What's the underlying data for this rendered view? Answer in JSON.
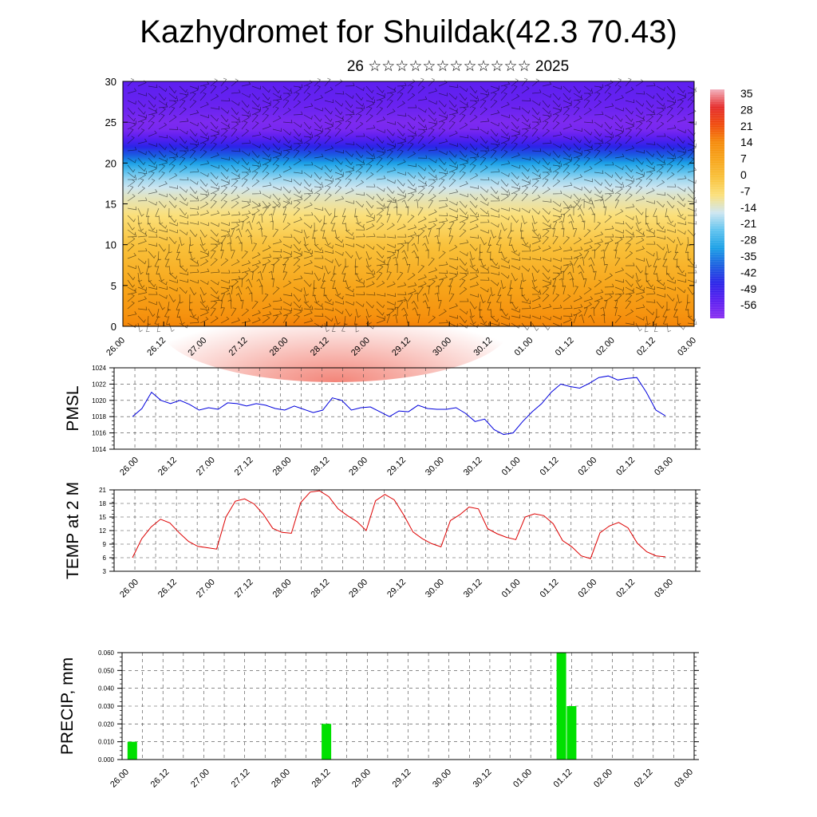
{
  "title": "Kazhydromet for Shuildak(42.3 70.43)",
  "subtitle": "26 ☆☆☆☆☆☆☆☆☆☆☆☆ 2025",
  "time_labels": [
    "26.00",
    "26.12",
    "27.00",
    "27.12",
    "28.00",
    "28.12",
    "29.00",
    "29.12",
    "30.00",
    "30.12",
    "01.00",
    "01.12",
    "02.00",
    "02.12",
    "03.00"
  ],
  "chart_data": [
    {
      "type": "heatmap",
      "title": "",
      "xlabel": "",
      "ylabel": "",
      "x": [
        "26.00",
        "26.12",
        "27.00",
        "27.12",
        "28.00",
        "28.12",
        "29.00",
        "29.12",
        "30.00",
        "30.12",
        "01.00",
        "01.12",
        "02.00",
        "02.12",
        "03.00"
      ],
      "ylim": [
        0,
        30
      ],
      "yticks": [
        0,
        5,
        10,
        15,
        20,
        25,
        30
      ],
      "colorbar": {
        "labels": [
          "35",
          "28",
          "21",
          "14",
          "7",
          "0",
          "-7",
          "-14",
          "-21",
          "-28",
          "-35",
          "-42",
          "-49",
          "-56"
        ],
        "colors": [
          "#f2b0bd",
          "#e52b2b",
          "#f04a0c",
          "#f58a0a",
          "#f7a51a",
          "#f9c13a",
          "#fbe07a",
          "#cfe6f0",
          "#5fc3ef",
          "#1aa0e6",
          "#1a5fe0",
          "#2a24e8",
          "#5a1ef0",
          "#8a2ef0"
        ]
      },
      "profile": {
        "levels": [
          0,
          2,
          4,
          6,
          8,
          10,
          12,
          14,
          16,
          18,
          19,
          20,
          21,
          22,
          23,
          24,
          25,
          26,
          28,
          30
        ],
        "values": [
          16,
          12,
          9,
          6,
          3,
          0,
          -4,
          -8,
          -12,
          -18,
          -23,
          -30,
          -38,
          -45,
          -52,
          -57,
          -58,
          -56,
          -54,
          -53
        ]
      },
      "wind_barbs": true
    },
    {
      "type": "line",
      "ylabel": "PMSL",
      "ylim": [
        1014,
        1024
      ],
      "yticks": [
        1014,
        1016,
        1018,
        1020,
        1022,
        1024
      ],
      "series": [
        {
          "color": "#0000dd",
          "values": [
            1018.0,
            1019.0,
            1021.0,
            1020.0,
            1019.6,
            1020.0,
            1019.5,
            1018.8,
            1019.1,
            1018.9,
            1019.7,
            1019.6,
            1019.3,
            1019.6,
            1019.4,
            1019.0,
            1018.8,
            1019.3,
            1018.9,
            1018.5,
            1018.8,
            1020.3,
            1020.0,
            1018.8,
            1019.1,
            1019.2,
            1018.6,
            1018.0,
            1018.7,
            1018.6,
            1019.4,
            1019.0,
            1018.9,
            1018.9,
            1019.1,
            1018.4,
            1017.4,
            1017.7,
            1016.4,
            1015.8,
            1016.0,
            1017.4,
            1018.6,
            1019.6,
            1021.0,
            1022.0,
            1021.7,
            1021.5,
            1022.1,
            1022.8,
            1023.0,
            1022.5,
            1022.7,
            1022.8,
            1021.0,
            1018.8,
            1018.1
          ]
        }
      ]
    },
    {
      "type": "line",
      "ylabel": "TEMP at 2 M",
      "ylim": [
        3,
        21
      ],
      "yticks": [
        3,
        6,
        9,
        12,
        15,
        18,
        21
      ],
      "series": [
        {
          "color": "#dd0000",
          "values": [
            6.0,
            10.2,
            12.8,
            14.5,
            13.7,
            11.5,
            9.6,
            8.5,
            8.2,
            7.9,
            15.0,
            18.5,
            19.0,
            17.9,
            15.6,
            12.5,
            11.6,
            11.4,
            18.2,
            20.5,
            20.8,
            19.5,
            16.8,
            15.3,
            14.0,
            12.0,
            18.6,
            20.0,
            18.8,
            15.5,
            11.7,
            10.2,
            9.1,
            8.4,
            14.2,
            15.5,
            17.2,
            16.8,
            12.4,
            11.3,
            10.5,
            10.0,
            15.0,
            15.7,
            15.3,
            13.5,
            9.8,
            8.4,
            6.4,
            5.8,
            11.5,
            13.0,
            13.8,
            12.6,
            9.2,
            7.3,
            6.4,
            6.2
          ]
        }
      ]
    },
    {
      "type": "bar",
      "ylabel": "PRECIP, mm",
      "ylim": [
        0,
        0.06
      ],
      "yticks": [
        "0.000",
        "0.010",
        "0.020",
        "0.030",
        "0.040",
        "0.050",
        "0.060"
      ],
      "color": "#00e000",
      "bars": [
        {
          "time": "26.03",
          "value": 0.01
        },
        {
          "time": "28.12",
          "value": 0.02
        },
        {
          "time": "01.09",
          "value": 0.06
        },
        {
          "time": "01.12",
          "value": 0.03
        }
      ]
    }
  ]
}
